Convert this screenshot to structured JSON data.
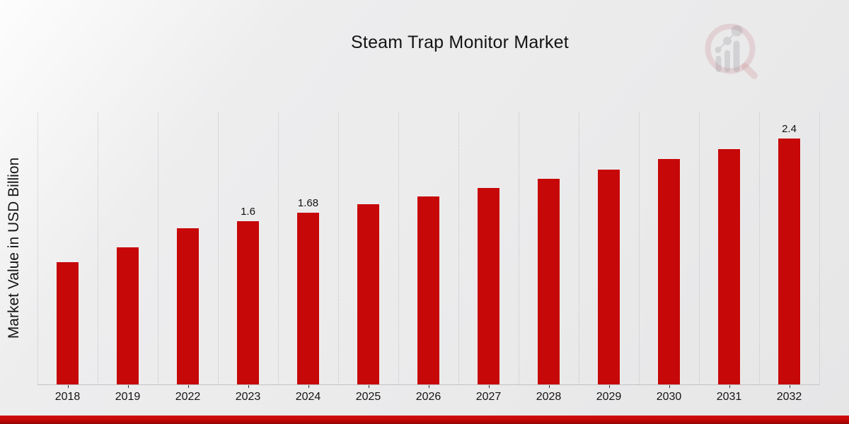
{
  "colors": {
    "bar": "#c60808",
    "bar_edge": "#f0eded",
    "grid": "#c5c5c8",
    "axis": "#c3c3c5",
    "tick": "#333333",
    "text": "#141414",
    "footer_stripe": "#c30707",
    "watermark_pink": "#c87d82",
    "watermark_gray": "#8c8c96"
  },
  "watermark": {
    "icon": "magnifier-growth-chart-logo"
  },
  "chart_data": {
    "type": "bar",
    "title": "Steam Trap Monitor Market",
    "ylabel": "Market Value in USD Billion",
    "xlabel": "",
    "categories": [
      "2018",
      "2019",
      "2022",
      "2023",
      "2024",
      "2025",
      "2026",
      "2027",
      "2028",
      "2029",
      "2030",
      "2031",
      "2032"
    ],
    "values": [
      1.2,
      1.34,
      1.53,
      1.6,
      1.68,
      1.76,
      1.84,
      1.92,
      2.01,
      2.1,
      2.2,
      2.3,
      2.4
    ],
    "value_labels": [
      "",
      "",
      "",
      "1.6",
      "1.68",
      "",
      "",
      "",
      "",
      "",
      "",
      "",
      "2.4"
    ],
    "ylim": [
      0,
      2.65
    ],
    "grid": "vertical-dotted",
    "legend": "none",
    "bar_color_name": "red"
  }
}
